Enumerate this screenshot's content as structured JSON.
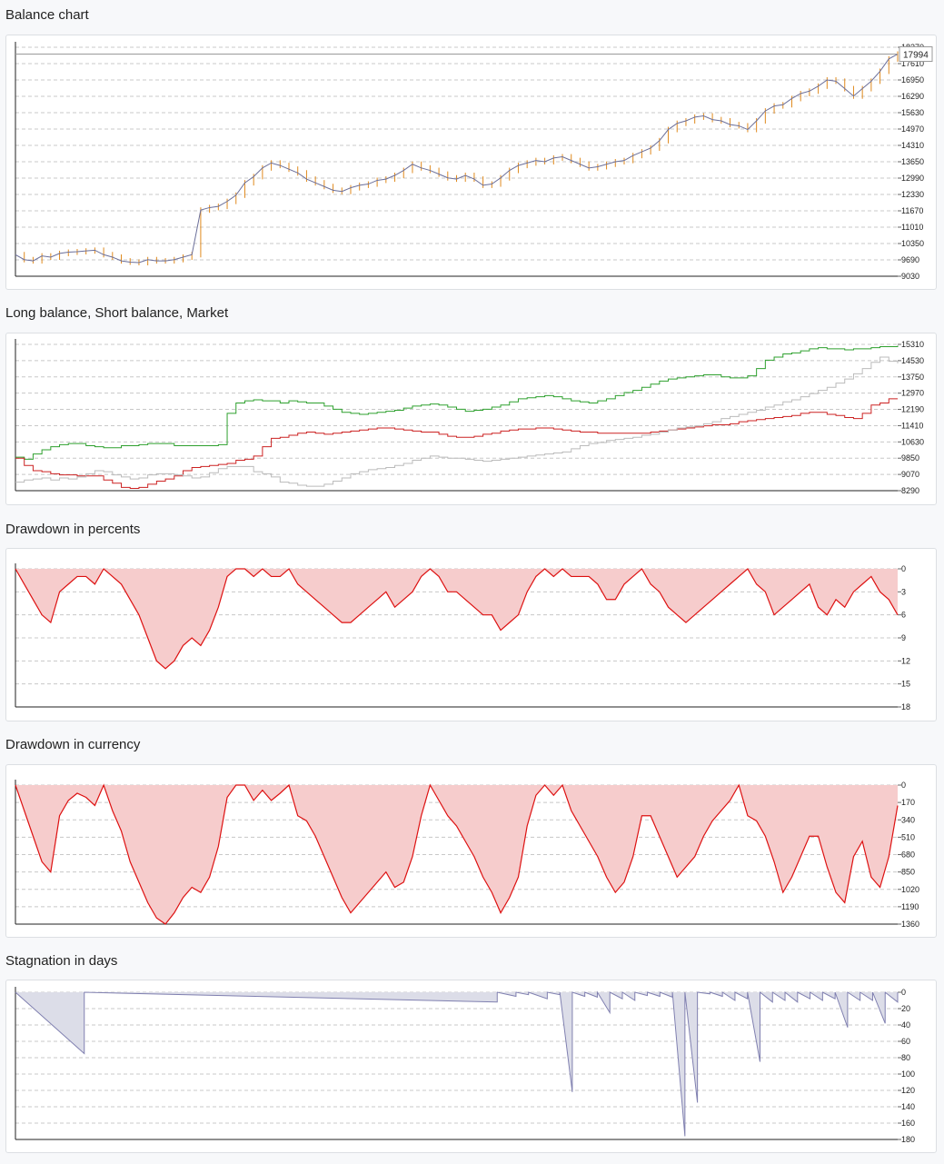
{
  "sections": {
    "balance_title": "Balance chart",
    "long_short_title": "Long balance, Short balance, Market",
    "dd_pct_title": "Drawdown in percents",
    "dd_cur_title": "Drawdown in currency",
    "stagnation_title": "Stagnation in days"
  },
  "colors": {
    "balance_line": "#6b6f9a",
    "balance_candle": "#e08a1e",
    "long": "#2ea02e",
    "short": "#cc2222",
    "market": "#bbbbbb",
    "drawdown_line": "#dd1111",
    "drawdown_fill": "#f6cccc",
    "stagnation_line": "#8080b0",
    "stagnation_fill": "#dcdde8"
  },
  "chart_data": [
    {
      "id": "balance",
      "type": "line",
      "title": "Balance chart",
      "grid": true,
      "ylim": [
        9030,
        18270
      ],
      "yticks": [
        "9030",
        "9690",
        "10350",
        "11010",
        "11670",
        "12330",
        "12990",
        "13650",
        "14310",
        "14970",
        "15630",
        "16290",
        "16950",
        "17610",
        "18270"
      ],
      "last_value_label": "17994",
      "last_value": 17994,
      "series": [
        {
          "values": [
            9900,
            9700,
            9650,
            9850,
            9800,
            9950,
            10000,
            10020,
            10050,
            10080,
            9900,
            9800,
            9650,
            9600,
            9580,
            9700,
            9650,
            9650,
            9700,
            9800,
            9900,
            11700,
            11800,
            11850,
            12050,
            12300,
            12800,
            13050,
            13400,
            13600,
            13500,
            13350,
            13200,
            12950,
            12800,
            12650,
            12500,
            12450,
            12600,
            12700,
            12750,
            12900,
            12950,
            13100,
            13300,
            13550,
            13400,
            13300,
            13150,
            13000,
            12950,
            13100,
            12950,
            12700,
            12750,
            13000,
            13300,
            13500,
            13600,
            13700,
            13650,
            13800,
            13850,
            13700,
            13550,
            13400,
            13450,
            13550,
            13650,
            13700,
            13900,
            14050,
            14200,
            14500,
            14950,
            15200,
            15300,
            15450,
            15500,
            15350,
            15300,
            15150,
            15100,
            14950,
            15300,
            15700,
            15900,
            15950,
            16200,
            16400,
            16500,
            16700,
            16950,
            16900,
            16600,
            16300,
            16600,
            16900,
            17300,
            17800,
            17994
          ]
        }
      ]
    },
    {
      "id": "long_short_market",
      "type": "line",
      "title": "Long balance, Short balance, Market",
      "grid": true,
      "ylim": [
        8290,
        15310
      ],
      "yticks": [
        "8290",
        "9070",
        "9850",
        "10630",
        "11410",
        "12190",
        "12970",
        "13750",
        "14530",
        "15310"
      ],
      "series": [
        {
          "color_key": "long",
          "values": [
            9900,
            9800,
            10050,
            10250,
            10400,
            10500,
            10550,
            10550,
            10450,
            10400,
            10350,
            10350,
            10450,
            10450,
            10500,
            10550,
            10550,
            10550,
            10450,
            10450,
            10450,
            10450,
            10450,
            10500,
            12000,
            12500,
            12600,
            12650,
            12600,
            12600,
            12500,
            12600,
            12550,
            12500,
            12500,
            12350,
            12200,
            12050,
            12000,
            11950,
            12000,
            12050,
            12100,
            12150,
            12250,
            12350,
            12400,
            12450,
            12400,
            12300,
            12200,
            12100,
            12150,
            12200,
            12300,
            12400,
            12550,
            12700,
            12750,
            12800,
            12850,
            12800,
            12700,
            12600,
            12550,
            12500,
            12600,
            12700,
            12850,
            13000,
            13100,
            13250,
            13400,
            13550,
            13650,
            13700,
            13750,
            13800,
            13850,
            13850,
            13750,
            13700,
            13700,
            13800,
            14150,
            14550,
            14700,
            14850,
            14900,
            15000,
            15100,
            15150,
            15100,
            15100,
            15050,
            15100,
            15100,
            15150,
            15200,
            15200,
            15250
          ]
        },
        {
          "color_key": "short",
          "values": [
            9850,
            9500,
            9250,
            9200,
            9100,
            9050,
            9050,
            9000,
            9000,
            9000,
            8800,
            8650,
            8450,
            8400,
            8450,
            8600,
            8750,
            8850,
            9000,
            9250,
            9400,
            9450,
            9500,
            9550,
            9600,
            9750,
            9800,
            9950,
            10400,
            10800,
            10850,
            10950,
            11050,
            11100,
            11050,
            11000,
            11050,
            11100,
            11150,
            11200,
            11250,
            11300,
            11300,
            11250,
            11200,
            11150,
            11100,
            11100,
            11000,
            10900,
            10850,
            10850,
            10900,
            11000,
            11050,
            11150,
            11200,
            11250,
            11250,
            11300,
            11300,
            11250,
            11200,
            11150,
            11100,
            11100,
            11050,
            11050,
            11050,
            11050,
            11050,
            11050,
            11100,
            11150,
            11200,
            11250,
            11300,
            11350,
            11400,
            11450,
            11450,
            11500,
            11600,
            11650,
            11700,
            11750,
            11800,
            11850,
            11900,
            12000,
            12050,
            12050,
            11950,
            11900,
            11800,
            11750,
            12000,
            12400,
            12500,
            12700,
            12700
          ]
        },
        {
          "color_key": "market",
          "values": [
            8700,
            8800,
            8850,
            8900,
            8800,
            8900,
            8850,
            8950,
            9100,
            9250,
            9200,
            9050,
            8950,
            8850,
            8900,
            9050,
            9100,
            9100,
            9050,
            9000,
            8900,
            8950,
            9150,
            9350,
            9450,
            9450,
            9450,
            9200,
            9100,
            8950,
            8700,
            8650,
            8550,
            8500,
            8500,
            8600,
            8750,
            8900,
            9100,
            9200,
            9300,
            9350,
            9400,
            9500,
            9600,
            9750,
            9850,
            9950,
            9900,
            9850,
            9850,
            9800,
            9750,
            9700,
            9750,
            9800,
            9850,
            9900,
            9950,
            10000,
            10050,
            10100,
            10150,
            10300,
            10450,
            10550,
            10600,
            10700,
            10750,
            10800,
            10850,
            10950,
            11000,
            11100,
            11200,
            11300,
            11350,
            11400,
            11500,
            11600,
            11750,
            11850,
            11950,
            12050,
            12150,
            12300,
            12400,
            12550,
            12650,
            12800,
            12950,
            13100,
            13250,
            13450,
            13650,
            13900,
            14150,
            14450,
            14700,
            14500,
            14400
          ]
        }
      ]
    },
    {
      "id": "drawdown_pct",
      "type": "area",
      "title": "Drawdown in percents",
      "grid": true,
      "ylim": [
        0,
        18
      ],
      "y_inverted": true,
      "yticks": [
        "0",
        "3",
        "6",
        "9",
        "12",
        "15",
        "18"
      ],
      "values": [
        0,
        2,
        4,
        6,
        7,
        3,
        2,
        1,
        1,
        2,
        0,
        1,
        2,
        4,
        6,
        9,
        12,
        13,
        12,
        10,
        9,
        10,
        8,
        5,
        1,
        0,
        0,
        1,
        0,
        1,
        1,
        0,
        2,
        3,
        4,
        5,
        6,
        7,
        7,
        6,
        5,
        4,
        3,
        5,
        4,
        3,
        1,
        0,
        1,
        3,
        3,
        4,
        5,
        6,
        6,
        8,
        7,
        6,
        3,
        1,
        0,
        1,
        0,
        1,
        1,
        1,
        2,
        4,
        4,
        2,
        1,
        0,
        2,
        3,
        5,
        6,
        7,
        6,
        5,
        4,
        3,
        2,
        1,
        0,
        2,
        3,
        6,
        5,
        4,
        3,
        2,
        5,
        6,
        4,
        5,
        3,
        2,
        1,
        3,
        4,
        6
      ]
    },
    {
      "id": "drawdown_cur",
      "type": "area",
      "title": "Drawdown in currency",
      "grid": true,
      "ylim": [
        0,
        1360
      ],
      "y_inverted": true,
      "yticks": [
        "0",
        "170",
        "340",
        "510",
        "680",
        "850",
        "1020",
        "1190",
        "1360"
      ],
      "values": [
        0,
        250,
        500,
        750,
        850,
        300,
        150,
        80,
        120,
        200,
        0,
        250,
        450,
        750,
        950,
        1150,
        1300,
        1360,
        1250,
        1100,
        1000,
        1050,
        900,
        600,
        120,
        0,
        0,
        150,
        50,
        150,
        80,
        0,
        300,
        350,
        500,
        700,
        900,
        1100,
        1250,
        1150,
        1050,
        950,
        850,
        1000,
        950,
        700,
        300,
        0,
        150,
        300,
        400,
        550,
        700,
        900,
        1050,
        1250,
        1100,
        900,
        400,
        100,
        0,
        100,
        0,
        250,
        400,
        550,
        700,
        900,
        1050,
        950,
        700,
        300,
        300,
        500,
        700,
        900,
        800,
        700,
        500,
        350,
        250,
        150,
        0,
        300,
        350,
        500,
        750,
        1050,
        900,
        700,
        500,
        500,
        800,
        1050,
        1150,
        700,
        550,
        900,
        1000,
        700,
        200
      ]
    },
    {
      "id": "stagnation",
      "type": "area",
      "title": "Stagnation in days",
      "grid": true,
      "ylim": [
        0,
        180
      ],
      "y_inverted": true,
      "yticks": [
        "0",
        "20",
        "40",
        "60",
        "80",
        "100",
        "120",
        "140",
        "160",
        "180"
      ],
      "periods": [
        [
          0,
          75
        ],
        [
          77,
          12
        ],
        [
          80,
          5
        ],
        [
          82,
          3
        ],
        [
          85,
          8
        ],
        [
          87,
          3
        ],
        [
          89,
          122
        ],
        [
          91,
          5
        ],
        [
          93,
          6
        ],
        [
          95,
          25
        ],
        [
          97,
          8
        ],
        [
          99,
          10
        ],
        [
          101,
          4
        ],
        [
          103,
          5
        ],
        [
          105,
          6
        ],
        [
          107,
          176
        ],
        [
          109,
          135
        ],
        [
          111,
          2
        ],
        [
          113,
          5
        ],
        [
          115,
          10
        ],
        [
          117,
          8
        ],
        [
          119,
          85
        ],
        [
          121,
          12
        ],
        [
          123,
          10
        ],
        [
          125,
          12
        ],
        [
          127,
          8
        ],
        [
          129,
          10
        ],
        [
          131,
          8
        ],
        [
          133,
          43
        ],
        [
          135,
          10
        ],
        [
          137,
          10
        ],
        [
          139,
          38
        ],
        [
          141,
          12
        ]
      ]
    }
  ]
}
